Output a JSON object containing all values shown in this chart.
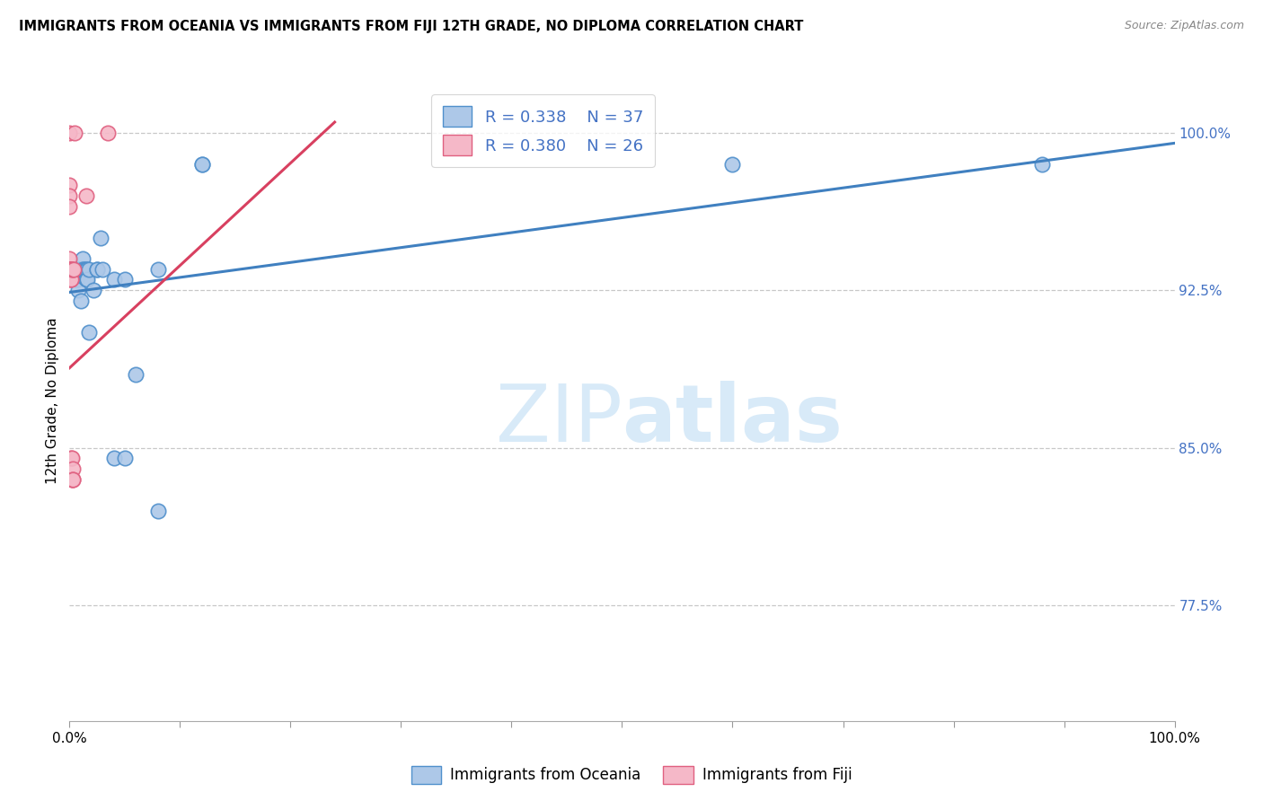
{
  "title": "IMMIGRANTS FROM OCEANIA VS IMMIGRANTS FROM FIJI 12TH GRADE, NO DIPLOMA CORRELATION CHART",
  "source": "Source: ZipAtlas.com",
  "ylabel": "12th Grade, No Diploma",
  "x_min": 0.0,
  "x_max": 1.0,
  "y_min": 0.72,
  "y_max": 1.025,
  "y_ticks": [
    0.775,
    0.85,
    0.925,
    1.0
  ],
  "y_tick_labels": [
    "77.5%",
    "85.0%",
    "92.5%",
    "100.0%"
  ],
  "x_ticks": [
    0.0,
    0.1,
    0.2,
    0.3,
    0.4,
    0.5,
    0.6,
    0.7,
    0.8,
    0.9,
    1.0
  ],
  "r_blue": 0.338,
  "n_blue": 37,
  "r_pink": 0.38,
  "n_pink": 26,
  "blue_fill": "#adc8e8",
  "pink_fill": "#f5b8c8",
  "blue_edge": "#5090cc",
  "pink_edge": "#e06080",
  "blue_line": "#4080c0",
  "pink_line": "#d84060",
  "grid_color": "#c8c8c8",
  "legend_text_color": "#4472c4",
  "tick_color": "#4472c4",
  "watermark_color": "#d8eaf8",
  "blue_scatter_x": [
    0.0,
    0.003,
    0.005,
    0.005,
    0.006,
    0.007,
    0.007,
    0.008,
    0.009,
    0.01,
    0.01,
    0.012,
    0.012,
    0.013,
    0.014,
    0.015,
    0.015,
    0.016,
    0.016,
    0.018,
    0.018,
    0.022,
    0.025,
    0.025,
    0.028,
    0.03,
    0.04,
    0.04,
    0.05,
    0.05,
    0.06,
    0.08,
    0.08,
    0.12,
    0.12,
    0.6,
    0.88
  ],
  "blue_scatter_y": [
    0.935,
    0.935,
    0.935,
    0.935,
    0.93,
    0.935,
    0.93,
    0.925,
    0.935,
    0.935,
    0.92,
    0.94,
    0.935,
    0.935,
    0.935,
    0.935,
    0.93,
    0.935,
    0.93,
    0.935,
    0.905,
    0.925,
    0.935,
    0.935,
    0.95,
    0.935,
    0.845,
    0.93,
    0.845,
    0.93,
    0.885,
    0.935,
    0.82,
    0.985,
    0.985,
    0.985,
    0.985
  ],
  "pink_scatter_x": [
    0.0,
    0.0,
    0.0,
    0.0,
    0.0,
    0.0,
    0.0,
    0.0,
    0.0,
    0.0,
    0.001,
    0.001,
    0.001,
    0.001,
    0.001,
    0.002,
    0.002,
    0.002,
    0.003,
    0.003,
    0.003,
    0.003,
    0.004,
    0.005,
    0.015,
    0.035
  ],
  "pink_scatter_y": [
    1.0,
    0.975,
    0.97,
    0.965,
    0.94,
    0.935,
    0.935,
    0.935,
    0.935,
    0.93,
    0.935,
    0.935,
    0.93,
    0.93,
    0.845,
    0.935,
    0.845,
    0.835,
    0.935,
    0.84,
    0.835,
    0.835,
    0.935,
    1.0,
    0.97,
    1.0
  ],
  "blue_line_x0": 0.0,
  "blue_line_x1": 1.0,
  "blue_line_y0": 0.924,
  "blue_line_y1": 0.995,
  "pink_line_x0": 0.0,
  "pink_line_x1": 0.24,
  "pink_line_y0": 0.888,
  "pink_line_y1": 1.005
}
